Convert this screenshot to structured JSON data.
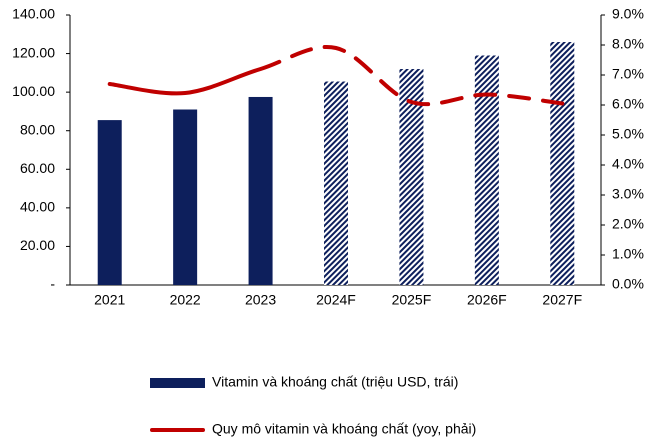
{
  "chart_data": {
    "type": "bar_line",
    "categories": [
      "2021",
      "2022",
      "2023",
      "2024F",
      "2025F",
      "2026F",
      "2027F"
    ],
    "series": [
      {
        "name": "Vitamin và khoáng chất (triệu USD, trái)",
        "color": "#0d1f5c",
        "type": "bar",
        "values": [
          85.5,
          91,
          97.5,
          105.5,
          112,
          119,
          126
        ]
      },
      {
        "name": "Quy mô vitamin và khoáng chất (yoy, phải)",
        "color": "#c00000",
        "type": "line",
        "axis": "y2",
        "values": [
          6.7,
          6.4,
          7.2,
          7.9,
          6.1,
          6.35,
          6.05
        ]
      }
    ],
    "ylim": [
      0,
      140
    ],
    "yticks": [
      {
        "value": 0,
        "label": "-"
      },
      {
        "value": 20,
        "label": "20.00"
      },
      {
        "value": 40,
        "label": "40.00"
      },
      {
        "value": 60,
        "label": "60.00"
      },
      {
        "value": 80,
        "label": "80.00"
      },
      {
        "value": 100,
        "label": "100.00"
      },
      {
        "value": 120,
        "label": "120.00"
      },
      {
        "value": 140,
        "label": "140.00"
      }
    ],
    "y2lim": [
      0,
      9
    ],
    "y2ticks": [
      {
        "value": 0,
        "label": "0.0%"
      },
      {
        "value": 1,
        "label": "1.0%"
      },
      {
        "value": 2,
        "label": "2.0%"
      },
      {
        "value": 3,
        "label": "3.0%"
      },
      {
        "value": 4,
        "label": "4.0%"
      },
      {
        "value": 5,
        "label": "5.0%"
      },
      {
        "value": 6,
        "label": "6.0%"
      },
      {
        "value": 7,
        "label": "7.0%"
      },
      {
        "value": 8,
        "label": "8.0%"
      },
      {
        "value": 9,
        "label": "9.0%"
      }
    ],
    "grid": false
  }
}
